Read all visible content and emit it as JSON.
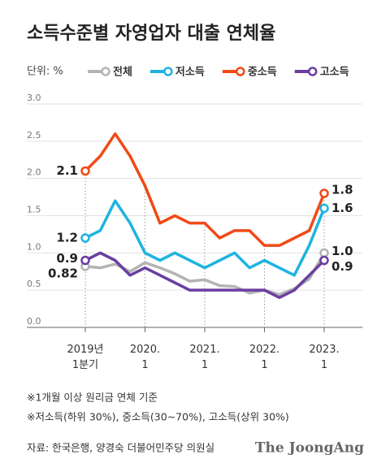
{
  "chart_data": {
    "type": "line",
    "title": "소득수준별 자영업자 대출 연체율",
    "unit": "단위: %",
    "categories": [
      "2019년\n1분기",
      null,
      null,
      null,
      "2020.\n1",
      null,
      null,
      null,
      "2021.\n1",
      null,
      null,
      null,
      "2022.\n1",
      null,
      null,
      null,
      "2023.\n1"
    ],
    "series": [
      {
        "name": "전체",
        "color": "#b4b4b4",
        "label_color": "#a8a8a8",
        "values": [
          0.82,
          0.8,
          0.85,
          0.75,
          0.87,
          0.8,
          0.72,
          0.62,
          0.64,
          0.56,
          0.55,
          0.46,
          0.5,
          0.44,
          0.52,
          0.65,
          1.0
        ],
        "value_labels": [
          "0.82",
          null,
          null,
          null,
          null,
          null,
          null,
          null,
          null,
          null,
          null,
          null,
          null,
          null,
          null,
          null,
          "1.0"
        ]
      },
      {
        "name": "저소득",
        "color": "#1eb4e1",
        "label_color": "#1a8cc4",
        "values": [
          1.2,
          1.3,
          1.7,
          1.4,
          1.0,
          0.9,
          1.0,
          0.9,
          0.8,
          0.9,
          1.0,
          0.8,
          0.9,
          0.8,
          0.7,
          1.1,
          1.6
        ],
        "value_labels": [
          "1.2",
          null,
          null,
          null,
          null,
          null,
          null,
          null,
          null,
          null,
          null,
          null,
          null,
          null,
          null,
          null,
          "1.6"
        ]
      },
      {
        "name": "중소득",
        "color": "#f04a16",
        "label_color": "#d0102b",
        "values": [
          2.1,
          2.3,
          2.6,
          2.3,
          1.9,
          1.4,
          1.5,
          1.4,
          1.4,
          1.2,
          1.3,
          1.3,
          1.1,
          1.1,
          1.2,
          1.3,
          1.8
        ],
        "value_labels": [
          "2.1",
          null,
          null,
          null,
          null,
          null,
          null,
          null,
          null,
          null,
          null,
          null,
          null,
          null,
          null,
          null,
          "1.8"
        ]
      },
      {
        "name": "고소득",
        "color": "#6a3fa0",
        "label_color": "#5b3392",
        "values": [
          0.9,
          1.0,
          0.9,
          0.7,
          0.8,
          0.7,
          0.6,
          0.5,
          0.5,
          0.5,
          0.5,
          0.5,
          0.5,
          0.4,
          0.5,
          0.7,
          0.9
        ],
        "value_labels": [
          "0.9",
          null,
          null,
          null,
          null,
          null,
          null,
          null,
          null,
          null,
          null,
          null,
          null,
          null,
          null,
          null,
          "0.9"
        ]
      }
    ],
    "ylim": [
      0,
      3
    ],
    "yticks": [
      {
        "value": 0,
        "label": "0.0"
      },
      0.5,
      {
        "value": 1,
        "label": "1.0"
      },
      1.5,
      {
        "value": 2,
        "label": "2.0"
      },
      2.5,
      {
        "value": 3,
        "label": "3.0"
      }
    ],
    "grid": true,
    "notes": [
      "※1개월 이상 원리금 연체 기준",
      "※저소득(하위 30%), 중소득(30~70%), 고소득(상위 30%)"
    ],
    "source": "자료: 한국은행, 양경숙 더불어민주당 의원실",
    "brand": "The JoongAng"
  }
}
